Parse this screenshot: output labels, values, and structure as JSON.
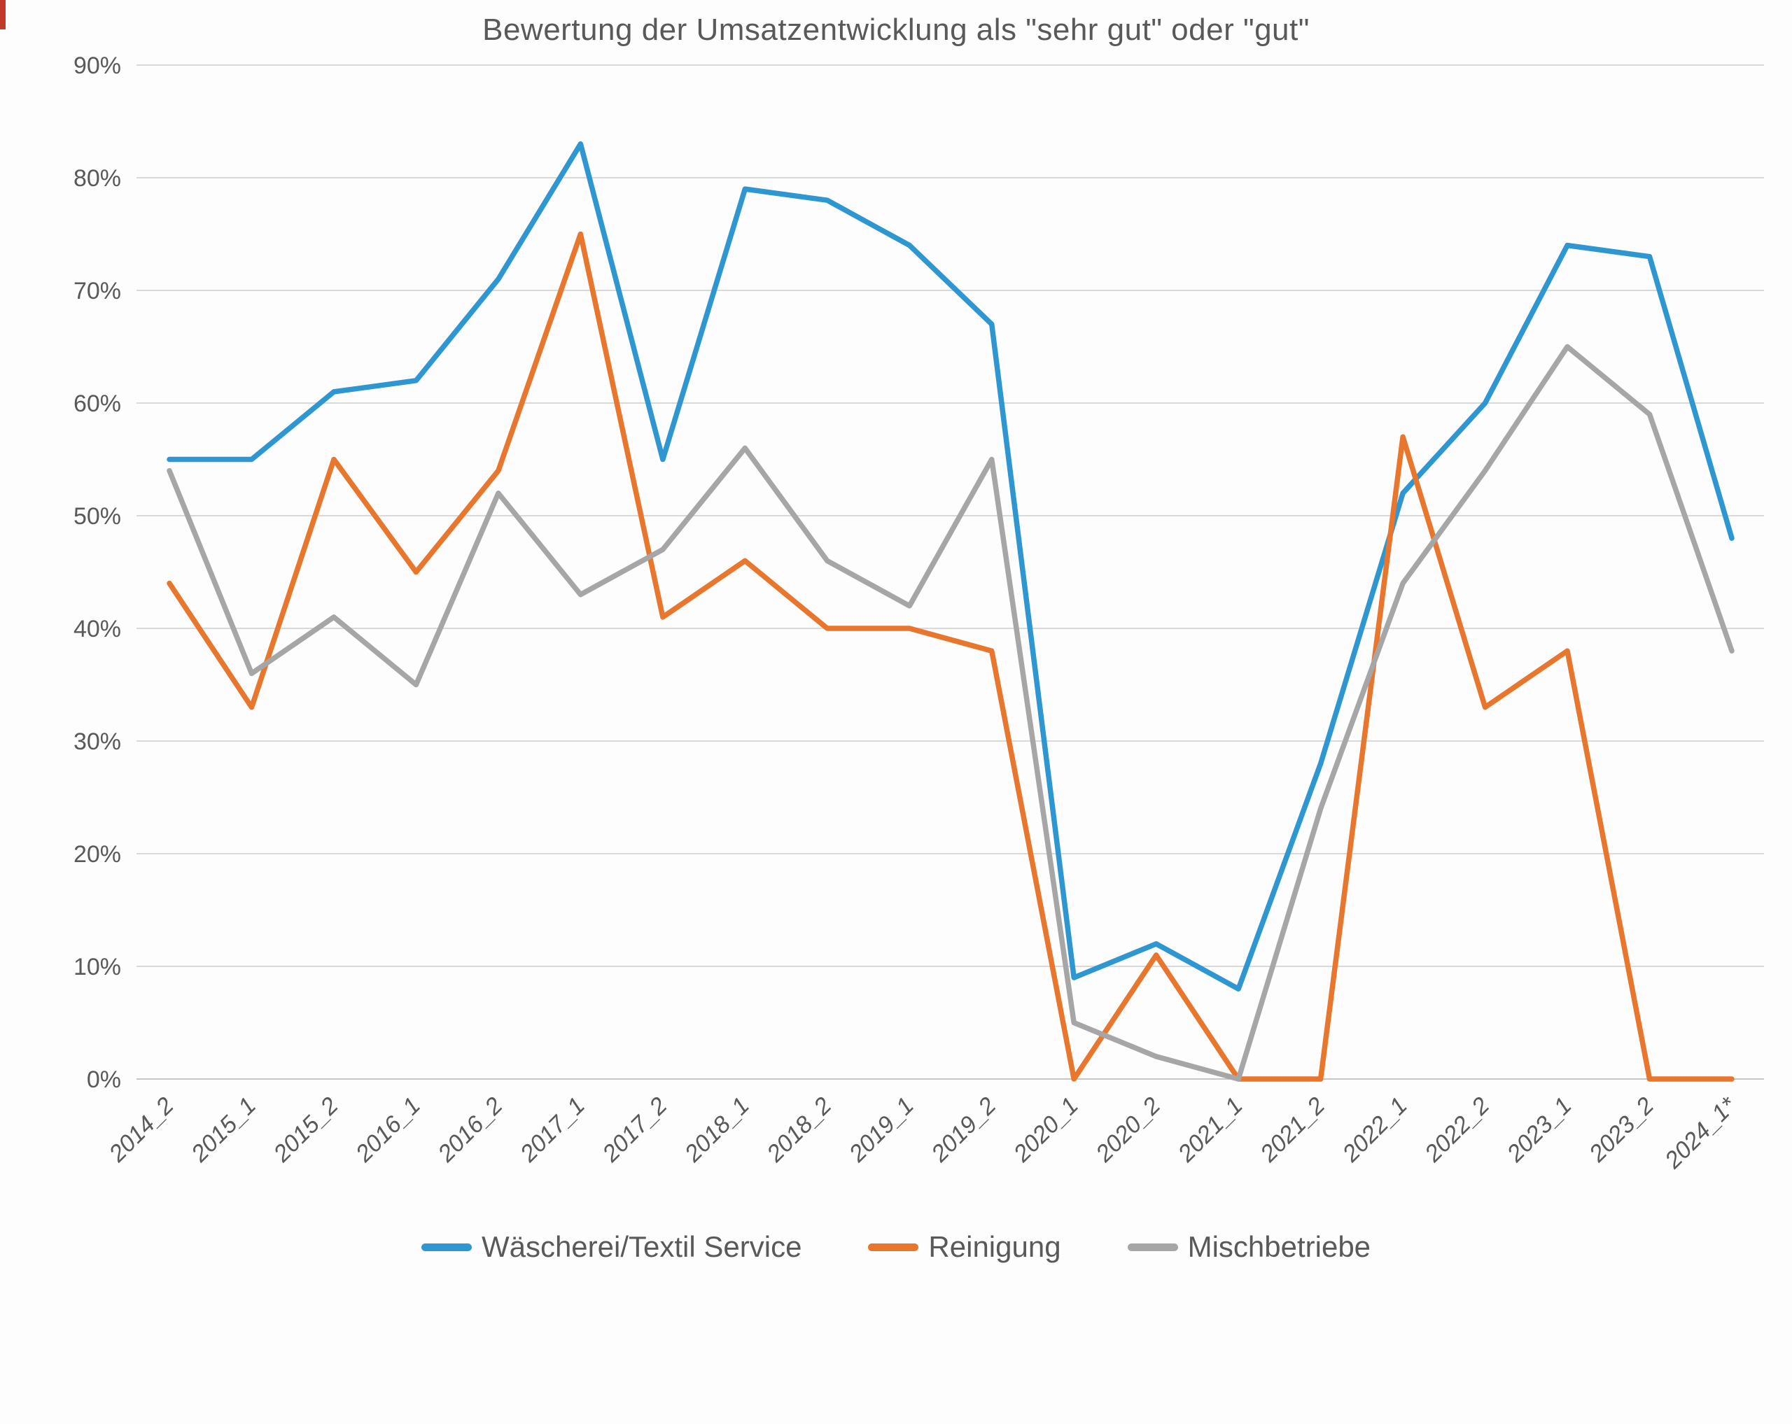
{
  "title": "Bewertung der Umsatzentwicklung als \"sehr gut\" oder \"gut\"",
  "colors": {
    "text": "#595959",
    "gridline": "#d9d9d9",
    "baseline": "#c6c6c6",
    "background": "#fdfdfd",
    "artifact_red": "#c0392b"
  },
  "y_axis": {
    "tick_labels": [
      "0%",
      "10%",
      "20%",
      "30%",
      "40%",
      "50%",
      "60%",
      "70%",
      "80%",
      "90%"
    ],
    "unit": "%"
  },
  "chart_data": {
    "type": "line",
    "title": "Bewertung der Umsatzentwicklung als \"sehr gut\" oder \"gut\"",
    "categories": [
      "2014_2",
      "2015_1",
      "2015_2",
      "2016_1",
      "2016_2",
      "2017_1",
      "2017_2",
      "2018_1",
      "2018_2",
      "2019_1",
      "2019_2",
      "2020_1",
      "2020_2",
      "2021_1",
      "2021_2",
      "2022_1",
      "2022_2",
      "2023_1",
      "2023_2",
      "2024_1*"
    ],
    "series": [
      {
        "name": "Wäscherei/Textil Service",
        "color": "#2E96D1",
        "values": [
          55,
          55,
          61,
          62,
          71,
          83,
          55,
          79,
          78,
          74,
          67,
          9,
          12,
          8,
          28,
          52,
          60,
          74,
          73,
          48
        ]
      },
      {
        "name": "Reinigung",
        "color": "#E8762D",
        "values": [
          44,
          33,
          55,
          45,
          54,
          75,
          41,
          46,
          40,
          40,
          38,
          0,
          11,
          0,
          0,
          57,
          33,
          38,
          0,
          0
        ]
      },
      {
        "name": "Mischbetriebe",
        "color": "#A6A6A6",
        "values": [
          54,
          36,
          41,
          35,
          52,
          43,
          47,
          56,
          46,
          42,
          55,
          5,
          2,
          0,
          24,
          44,
          54,
          65,
          59,
          38
        ]
      }
    ],
    "xlabel": "",
    "ylabel": "",
    "ylim": [
      0,
      90
    ],
    "ytick_step": 10,
    "grid": true,
    "legend_position": "bottom"
  }
}
